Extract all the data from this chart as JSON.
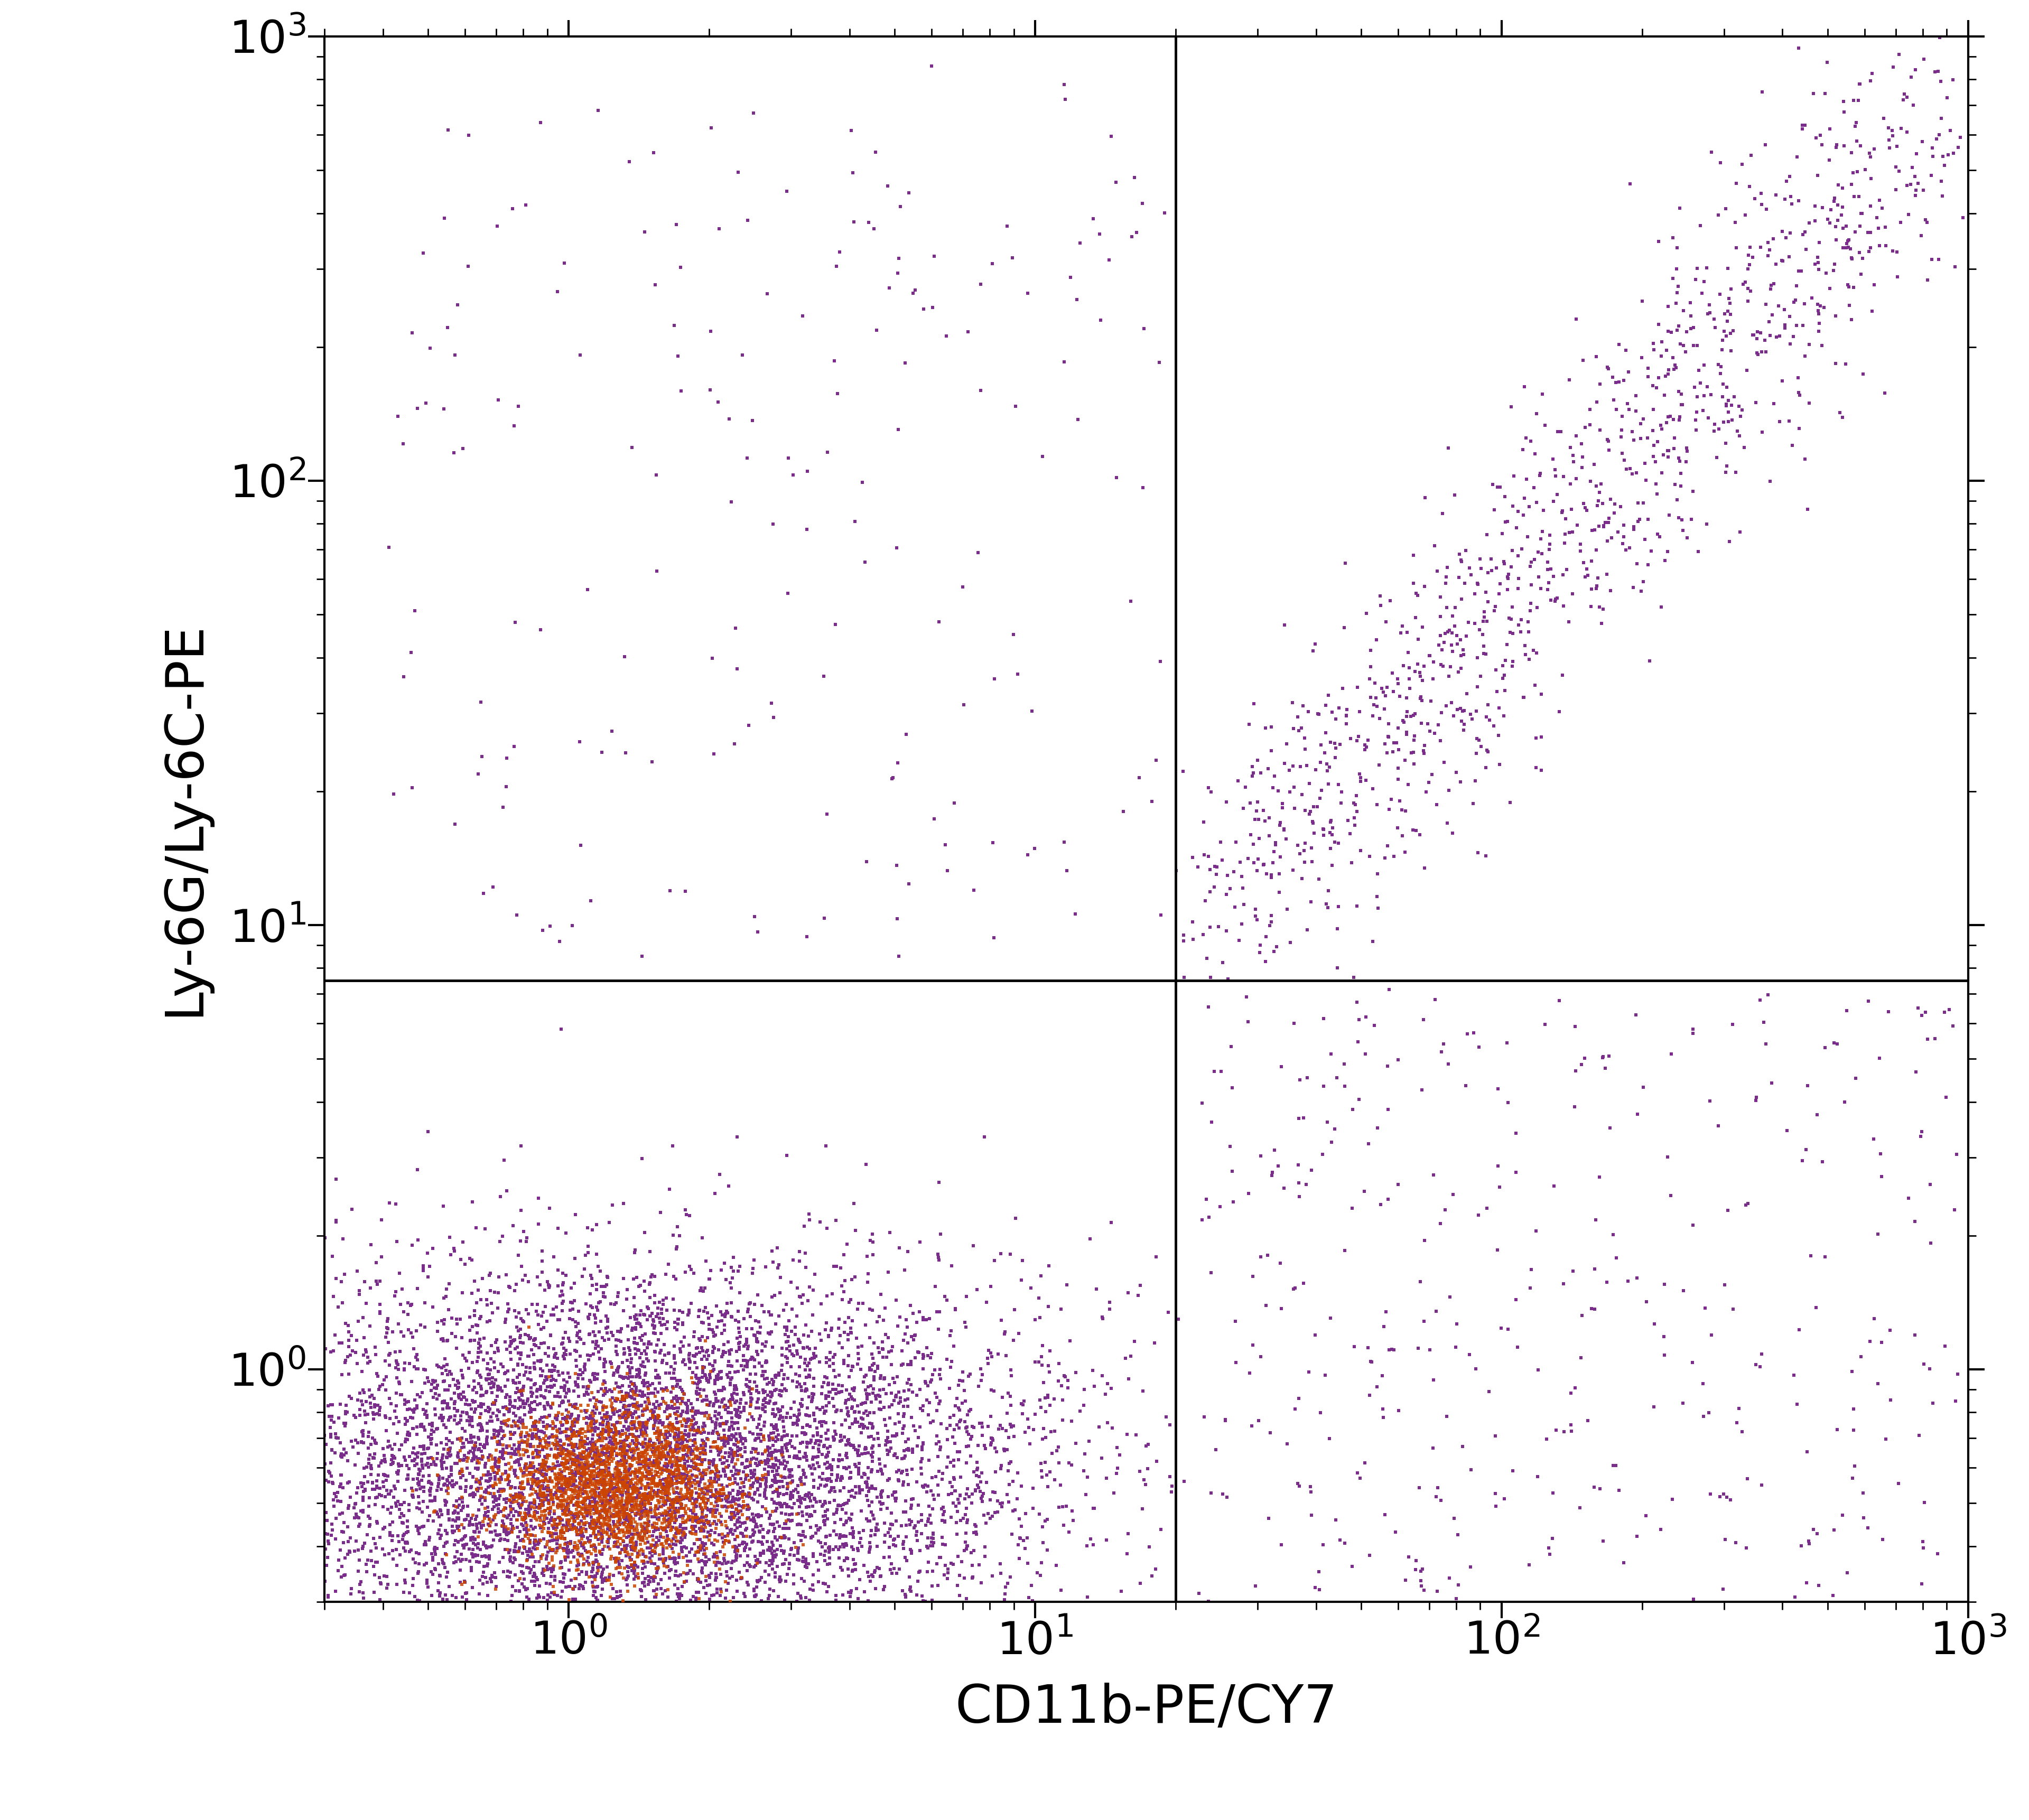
{
  "xlabel": "CD11b-PE/CY7",
  "ylabel": "Ly-6G/Ly-6C-PE",
  "xlim": [
    0.3,
    1000
  ],
  "ylim": [
    0.3,
    1000
  ],
  "dot_color": "#7B2D8B",
  "dot_color_center": "#CC4400",
  "background_color": "#ffffff",
  "xlabel_fontsize": 72,
  "ylabel_fontsize": 72,
  "tick_fontsize": 62,
  "quadrant_x": 20,
  "quadrant_y": 7.5,
  "seed": 42
}
